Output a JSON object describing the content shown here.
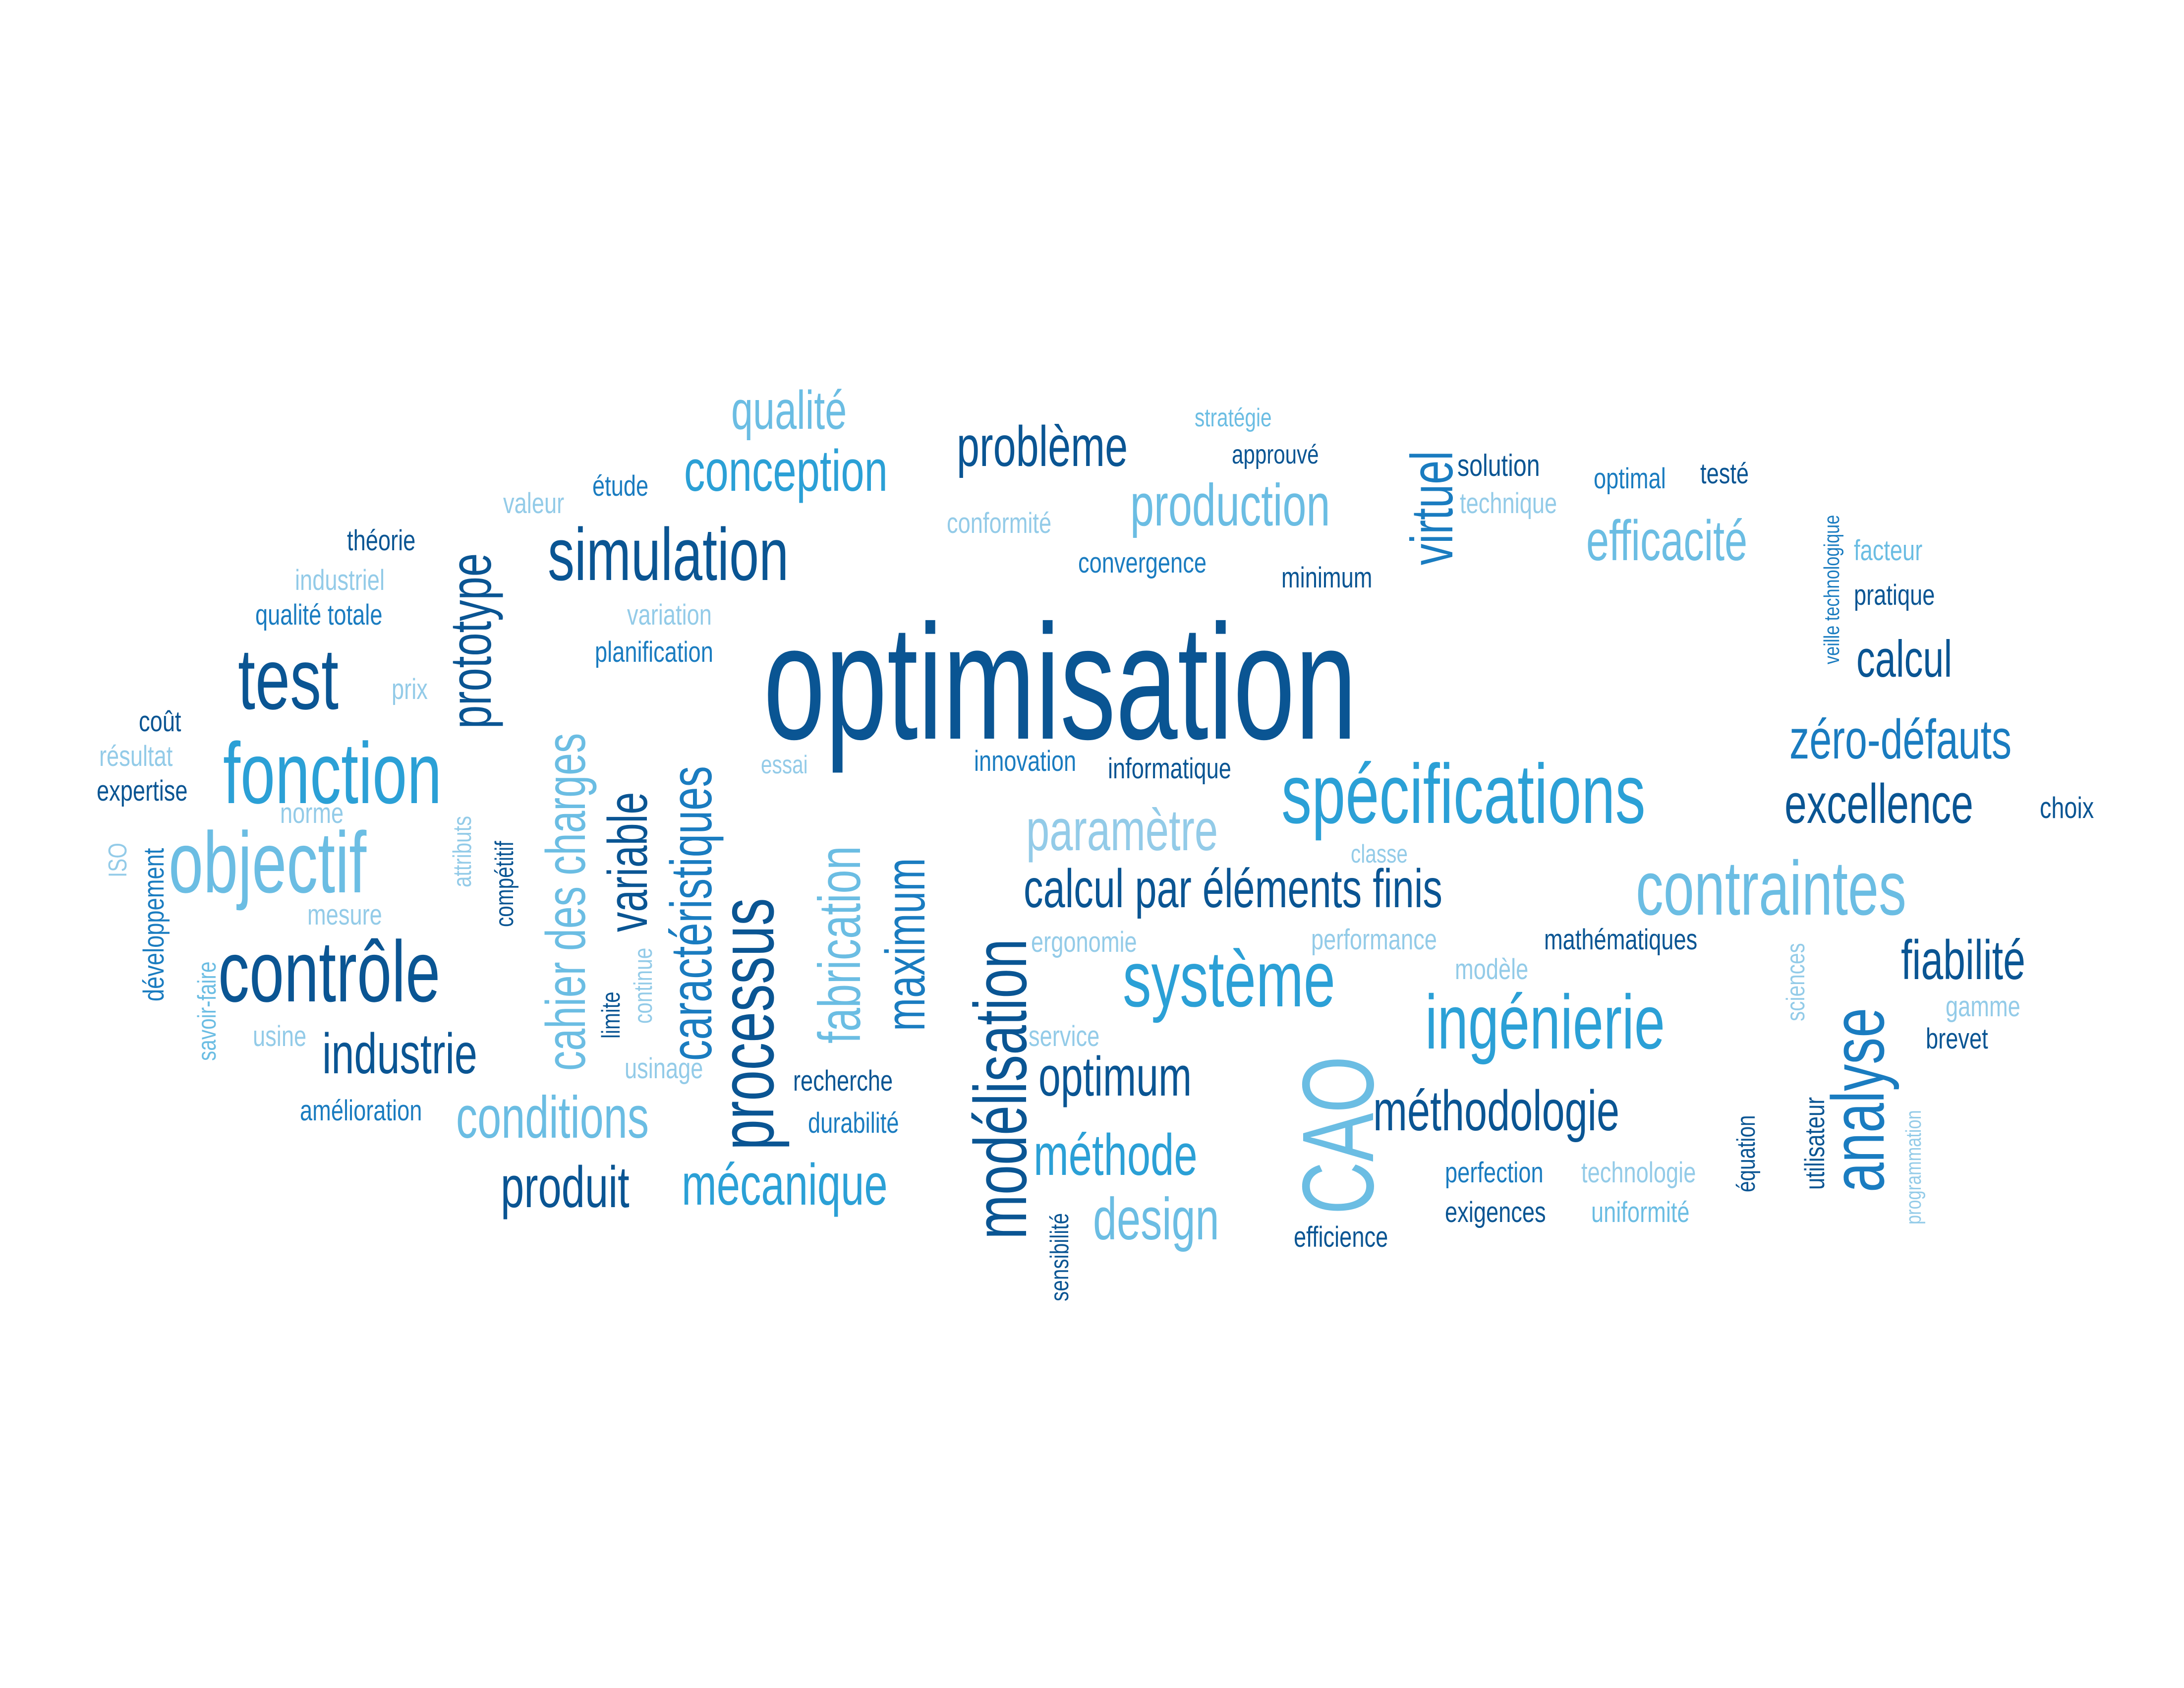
{
  "palette": {
    "dark": "#0a5593",
    "mid": "#1a7cc0",
    "bright": "#2ba0d6",
    "light": "#6bbde3",
    "pale": "#93cbe8"
  },
  "words": [
    {
      "id": "optimisation",
      "text": "optimisation",
      "tone": "dark"
    },
    {
      "id": "simulation",
      "text": "simulation",
      "tone": "dark"
    },
    {
      "id": "conception",
      "text": "conception",
      "tone": "bright"
    },
    {
      "id": "qualite",
      "text": "qualité",
      "tone": "light"
    },
    {
      "id": "probleme",
      "text": "problème",
      "tone": "dark"
    },
    {
      "id": "production",
      "text": "production",
      "tone": "light"
    },
    {
      "id": "strategie",
      "text": "stratégie",
      "tone": "light"
    },
    {
      "id": "approuve",
      "text": "approuvé",
      "tone": "dark"
    },
    {
      "id": "virtuel",
      "text": "virtuel",
      "tone": "mid"
    },
    {
      "id": "solution",
      "text": "solution",
      "tone": "dark"
    },
    {
      "id": "technique",
      "text": "technique",
      "tone": "pale"
    },
    {
      "id": "optimal",
      "text": "optimal",
      "tone": "mid"
    },
    {
      "id": "teste",
      "text": "testé",
      "tone": "dark"
    },
    {
      "id": "veille-technologique",
      "text": "veille technologique",
      "tone": "mid"
    },
    {
      "id": "efficacite",
      "text": "efficacité",
      "tone": "light"
    },
    {
      "id": "facteur",
      "text": "facteur",
      "tone": "light"
    },
    {
      "id": "pratique",
      "text": "pratique",
      "tone": "dark"
    },
    {
      "id": "calcul",
      "text": "calcul",
      "tone": "dark"
    },
    {
      "id": "zero-defauts",
      "text": "zéro-défauts",
      "tone": "mid"
    },
    {
      "id": "excellence",
      "text": "excellence",
      "tone": "dark"
    },
    {
      "id": "choix",
      "text": "choix",
      "tone": "dark"
    },
    {
      "id": "contraintes",
      "text": "contraintes",
      "tone": "light"
    },
    {
      "id": "fiabilite",
      "text": "fiabilité",
      "tone": "dark"
    },
    {
      "id": "gamme",
      "text": "gamme",
      "tone": "pale"
    },
    {
      "id": "brevet",
      "text": "brevet",
      "tone": "dark"
    },
    {
      "id": "analyse",
      "text": "analyse",
      "tone": "mid"
    },
    {
      "id": "programmation",
      "text": "programmation",
      "tone": "pale"
    },
    {
      "id": "utilisateur",
      "text": "utilisateur",
      "tone": "dark"
    },
    {
      "id": "sciences",
      "text": "sciences",
      "tone": "pale"
    },
    {
      "id": "equation",
      "text": "équation",
      "tone": "dark"
    },
    {
      "id": "technologie",
      "text": "technologie",
      "tone": "pale"
    },
    {
      "id": "uniformite",
      "text": "uniformité",
      "tone": "light"
    },
    {
      "id": "perfection",
      "text": "perfection",
      "tone": "mid"
    },
    {
      "id": "exigences",
      "text": "exigences",
      "tone": "dark"
    },
    {
      "id": "methodologie",
      "text": "méthodologie",
      "tone": "dark"
    },
    {
      "id": "ingenierie",
      "text": "ingénierie",
      "tone": "bright"
    },
    {
      "id": "mathematiques",
      "text": "mathématiques",
      "tone": "dark"
    },
    {
      "id": "modele",
      "text": "modèle",
      "tone": "pale"
    },
    {
      "id": "performance",
      "text": "performance",
      "tone": "pale"
    },
    {
      "id": "classe",
      "text": "classe",
      "tone": "pale"
    },
    {
      "id": "specifications",
      "text": "spécifications",
      "tone": "bright"
    },
    {
      "id": "calcul-par-elements-finis",
      "text": "calcul par éléments finis",
      "tone": "dark"
    },
    {
      "id": "systeme",
      "text": "système",
      "tone": "bright"
    },
    {
      "id": "parametre",
      "text": "paramètre",
      "tone": "pale"
    },
    {
      "id": "ergonomie",
      "text": "ergonomie",
      "tone": "pale"
    },
    {
      "id": "innovation",
      "text": "innovation",
      "tone": "mid"
    },
    {
      "id": "informatique",
      "text": "informatique",
      "tone": "dark"
    },
    {
      "id": "cao",
      "text": "CAO",
      "tone": "light"
    },
    {
      "id": "efficience",
      "text": "efficience",
      "tone": "dark"
    },
    {
      "id": "optimum",
      "text": "optimum",
      "tone": "dark"
    },
    {
      "id": "methode",
      "text": "méthode",
      "tone": "bright"
    },
    {
      "id": "design",
      "text": "design",
      "tone": "light"
    },
    {
      "id": "service",
      "text": "service",
      "tone": "pale"
    },
    {
      "id": "sensibilite",
      "text": "sensibilité",
      "tone": "dark"
    },
    {
      "id": "modelisation",
      "text": "modélisation",
      "tone": "dark"
    },
    {
      "id": "maximum",
      "text": "maximum",
      "tone": "mid"
    },
    {
      "id": "fabrication",
      "text": "fabrication",
      "tone": "light"
    },
    {
      "id": "processus",
      "text": "processus",
      "tone": "dark"
    },
    {
      "id": "caracteristiques",
      "text": "caractéristiques",
      "tone": "mid"
    },
    {
      "id": "recherche",
      "text": "recherche",
      "tone": "dark"
    },
    {
      "id": "durabilite",
      "text": "durabilité",
      "tone": "mid"
    },
    {
      "id": "mecanique",
      "text": "mécanique",
      "tone": "bright"
    },
    {
      "id": "produit",
      "text": "produit",
      "tone": "dark"
    },
    {
      "id": "conditions",
      "text": "conditions",
      "tone": "light"
    },
    {
      "id": "usinage",
      "text": "usinage",
      "tone": "pale"
    },
    {
      "id": "essai",
      "text": "essai",
      "tone": "pale"
    },
    {
      "id": "variable",
      "text": "variable",
      "tone": "dark"
    },
    {
      "id": "cahier-des-charges",
      "text": "cahier des charges",
      "tone": "light"
    },
    {
      "id": "continue",
      "text": "continue",
      "tone": "pale"
    },
    {
      "id": "limite",
      "text": "limite",
      "tone": "dark"
    },
    {
      "id": "planification",
      "text": "planification",
      "tone": "mid"
    },
    {
      "id": "variation",
      "text": "variation",
      "tone": "pale"
    },
    {
      "id": "valeur",
      "text": "valeur",
      "tone": "pale"
    },
    {
      "id": "etude",
      "text": "étude",
      "tone": "mid"
    },
    {
      "id": "conformite",
      "text": "conformité",
      "tone": "pale"
    },
    {
      "id": "convergence",
      "text": "convergence",
      "tone": "mid"
    },
    {
      "id": "minimum",
      "text": "minimum",
      "tone": "dark"
    },
    {
      "id": "theorie",
      "text": "théorie",
      "tone": "dark"
    },
    {
      "id": "industriel",
      "text": "industriel",
      "tone": "pale"
    },
    {
      "id": "qualite-totale",
      "text": "qualité totale",
      "tone": "mid"
    },
    {
      "id": "prototype",
      "text": "prototype",
      "tone": "dark"
    },
    {
      "id": "test",
      "text": "test",
      "tone": "dark"
    },
    {
      "id": "prix",
      "text": "prix",
      "tone": "pale"
    },
    {
      "id": "fonction",
      "text": "fonction",
      "tone": "bright"
    },
    {
      "id": "cout",
      "text": "coût",
      "tone": "dark"
    },
    {
      "id": "resultat",
      "text": "résultat",
      "tone": "pale"
    },
    {
      "id": "expertise",
      "text": "expertise",
      "tone": "dark"
    },
    {
      "id": "norme",
      "text": "norme",
      "tone": "pale"
    },
    {
      "id": "objectif",
      "text": "objectif",
      "tone": "light"
    },
    {
      "id": "attributs",
      "text": "attributs",
      "tone": "pale"
    },
    {
      "id": "competitif",
      "text": "compétitif",
      "tone": "dark"
    },
    {
      "id": "iso",
      "text": "ISO",
      "tone": "pale"
    },
    {
      "id": "developpement",
      "text": "développement",
      "tone": "mid"
    },
    {
      "id": "mesure",
      "text": "mesure",
      "tone": "pale"
    },
    {
      "id": "controle",
      "text": "contrôle",
      "tone": "dark"
    },
    {
      "id": "savoir-faire",
      "text": "savoir-faire",
      "tone": "light"
    },
    {
      "id": "usine",
      "text": "usine",
      "tone": "pale"
    },
    {
      "id": "industrie",
      "text": "industrie",
      "tone": "dark"
    },
    {
      "id": "amelioration",
      "text": "amélioration",
      "tone": "mid"
    }
  ]
}
